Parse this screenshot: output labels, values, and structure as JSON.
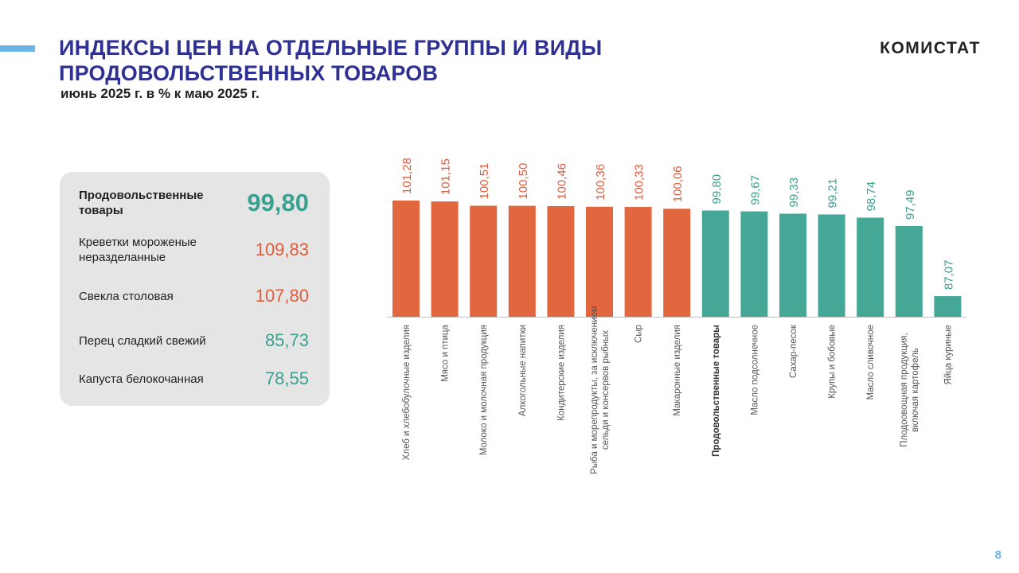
{
  "header": {
    "title_line1": "ИНДЕКСЫ ЦЕН НА ОТДЕЛЬНЫЕ  ГРУППЫ И ВИДЫ",
    "title_line2": "ПРОДОВОЛЬСТВЕННЫХ  ТОВАРОВ",
    "subtitle": "июнь 2025 г. в % к маю 2025 г.",
    "brand": "КОМИСТАТ"
  },
  "panel": {
    "main": {
      "label": "Продовольственные товары",
      "value": "99,80"
    },
    "items": [
      {
        "label": "Креветки мороженые неразделанные",
        "value": "109,83"
      },
      {
        "label": "Свекла столовая",
        "value": "107,80"
      },
      {
        "label": "Перец сладкий  свежий",
        "value": "85,73"
      },
      {
        "label": "Капуста белокочанная",
        "value": "78,55"
      }
    ]
  },
  "colors": {
    "up": "#e2673f",
    "down": "#45a897",
    "up_text": "#e05a3a",
    "down_text": "#3aa08f",
    "title": "#2e3192"
  },
  "page_number": "8",
  "chart_data": {
    "type": "bar",
    "title": "",
    "xlabel": "",
    "ylabel": "",
    "ylim": [
      84,
      102
    ],
    "categories": [
      [
        "Хлеб  и хлебобулочные  изделия"
      ],
      [
        "Мясо и птица"
      ],
      [
        "Молоко и молочная  продукция"
      ],
      [
        "Алкогольные  напитки"
      ],
      [
        "Кондитерские  изделия"
      ],
      [
        "Рыба и морепродукты,  за исключением",
        "сельди и консервов рыбных"
      ],
      [
        "Сыр"
      ],
      [
        "Макаронные  изделия"
      ],
      [
        "Продовольственные товары"
      ],
      [
        "Масло подсолнечное"
      ],
      [
        "Сахар-песок"
      ],
      [
        "Крупы и бобовые"
      ],
      [
        "Масло сливочное"
      ],
      [
        "Плодоовощная  продукция,",
        "включая картофель"
      ],
      [
        "Яйца куриные"
      ]
    ],
    "values": [
      101.28,
      101.15,
      100.51,
      100.5,
      100.46,
      100.36,
      100.33,
      100.06,
      99.8,
      99.67,
      99.33,
      99.21,
      98.74,
      97.49,
      87.07
    ],
    "value_labels": [
      "101,28",
      "101,15",
      "100,51",
      "100,50",
      "100,46",
      "100,36",
      "100,33",
      "100,06",
      "99,80",
      "99,67",
      "99,33",
      "99,21",
      "98,74",
      "97,49",
      "87,07"
    ],
    "bold_category": "Продовольственные товары",
    "threshold": 100
  }
}
